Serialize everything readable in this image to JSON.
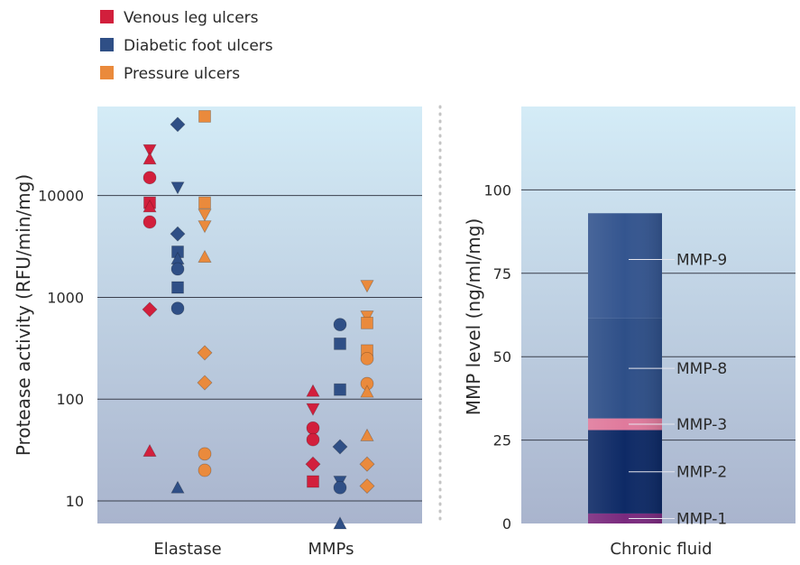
{
  "legend": {
    "items": [
      {
        "label": "Venous leg ulcers",
        "color": "#d21f3c"
      },
      {
        "label": "Diabetic foot ulcers",
        "color": "#2f4f86"
      },
      {
        "label": "Pressure ulcers",
        "color": "#ea8a3c"
      }
    ]
  },
  "chart_data": [
    {
      "type": "scatter",
      "ylabel": "Protease activity (RFU/min/mg)",
      "yscale": "log",
      "ylim": [
        6,
        75000
      ],
      "yticks": [
        "10",
        "100",
        "1000",
        "10000"
      ],
      "categories": [
        "Elastase",
        "MMPs"
      ],
      "grid": true,
      "legend_position": "top-left",
      "series": [
        {
          "name": "Venous leg ulcers",
          "color": "#d21f3c",
          "points": [
            {
              "cat": 0,
              "y": 28000,
              "shape": "triangle-down"
            },
            {
              "cat": 0,
              "y": 23000,
              "shape": "triangle-up"
            },
            {
              "cat": 0,
              "y": 15000,
              "shape": "circle"
            },
            {
              "cat": 0,
              "y": 8500,
              "shape": "square"
            },
            {
              "cat": 0,
              "y": 7800,
              "shape": "triangle-up"
            },
            {
              "cat": 0,
              "y": 5500,
              "shape": "circle"
            },
            {
              "cat": 0,
              "y": 760,
              "shape": "diamond"
            },
            {
              "cat": 0,
              "y": 31,
              "shape": "triangle-up"
            },
            {
              "cat": 1,
              "y": 120,
              "shape": "triangle-up"
            },
            {
              "cat": 1,
              "y": 80,
              "shape": "triangle-down"
            },
            {
              "cat": 1,
              "y": 52,
              "shape": "circle"
            },
            {
              "cat": 1,
              "y": 40,
              "shape": "circle"
            },
            {
              "cat": 1,
              "y": 23,
              "shape": "diamond"
            },
            {
              "cat": 1,
              "y": 15.5,
              "shape": "square"
            }
          ]
        },
        {
          "name": "Diabetic foot ulcers",
          "color": "#2f4f86",
          "points": [
            {
              "cat": 0,
              "y": 50000,
              "shape": "diamond"
            },
            {
              "cat": 0,
              "y": 12000,
              "shape": "triangle-down"
            },
            {
              "cat": 0,
              "y": 4200,
              "shape": "diamond"
            },
            {
              "cat": 0,
              "y": 2800,
              "shape": "square"
            },
            {
              "cat": 0,
              "y": 2400,
              "shape": "triangle-up"
            },
            {
              "cat": 0,
              "y": 1900,
              "shape": "circle"
            },
            {
              "cat": 0,
              "y": 1250,
              "shape": "square"
            },
            {
              "cat": 0,
              "y": 780,
              "shape": "circle"
            },
            {
              "cat": 0,
              "y": 13.5,
              "shape": "triangle-up"
            },
            {
              "cat": 1,
              "y": 540,
              "shape": "circle"
            },
            {
              "cat": 1,
              "y": 350,
              "shape": "square"
            },
            {
              "cat": 1,
              "y": 124,
              "shape": "square"
            },
            {
              "cat": 1,
              "y": 34,
              "shape": "diamond"
            },
            {
              "cat": 1,
              "y": 15.5,
              "shape": "triangle-down"
            },
            {
              "cat": 1,
              "y": 13.5,
              "shape": "circle"
            },
            {
              "cat": 1,
              "y": 6,
              "shape": "triangle-up"
            }
          ]
        },
        {
          "name": "Pressure ulcers",
          "color": "#ea8a3c",
          "points": [
            {
              "cat": 0,
              "y": 60000,
              "shape": "square"
            },
            {
              "cat": 0,
              "y": 8500,
              "shape": "square"
            },
            {
              "cat": 0,
              "y": 6500,
              "shape": "triangle-down"
            },
            {
              "cat": 0,
              "y": 5000,
              "shape": "triangle-down"
            },
            {
              "cat": 0,
              "y": 2500,
              "shape": "triangle-up"
            },
            {
              "cat": 0,
              "y": 285,
              "shape": "diamond"
            },
            {
              "cat": 0,
              "y": 145,
              "shape": "diamond"
            },
            {
              "cat": 0,
              "y": 29,
              "shape": "circle"
            },
            {
              "cat": 0,
              "y": 20,
              "shape": "circle"
            },
            {
              "cat": 1,
              "y": 1300,
              "shape": "triangle-down"
            },
            {
              "cat": 1,
              "y": 650,
              "shape": "triangle-down"
            },
            {
              "cat": 1,
              "y": 560,
              "shape": "square"
            },
            {
              "cat": 1,
              "y": 300,
              "shape": "square"
            },
            {
              "cat": 1,
              "y": 250,
              "shape": "circle"
            },
            {
              "cat": 1,
              "y": 142,
              "shape": "circle"
            },
            {
              "cat": 1,
              "y": 118,
              "shape": "triangle-up"
            },
            {
              "cat": 1,
              "y": 44,
              "shape": "triangle-up"
            },
            {
              "cat": 1,
              "y": 23,
              "shape": "diamond"
            },
            {
              "cat": 1,
              "y": 14,
              "shape": "diamond"
            }
          ]
        }
      ]
    },
    {
      "type": "bar",
      "subtype": "stacked",
      "ylabel": "MMP level (ng/ml/mg)",
      "ylim": [
        0,
        125
      ],
      "yticks": [
        "0",
        "25",
        "50",
        "75",
        "100"
      ],
      "categories": [
        "Chronic fluid"
      ],
      "grid": true,
      "segments": [
        {
          "name": "MMP-1",
          "value": 3,
          "color": "#7a2a7e"
        },
        {
          "name": "MMP-2",
          "value": 25,
          "color": "#0e2a66"
        },
        {
          "name": "MMP-3",
          "value": 3.5,
          "color": "#e07a9c"
        },
        {
          "name": "MMP-8",
          "value": 30,
          "color": "#2e4f88"
        },
        {
          "name": "MMP-9",
          "value": 31.5,
          "color": "#34558f"
        }
      ]
    }
  ]
}
